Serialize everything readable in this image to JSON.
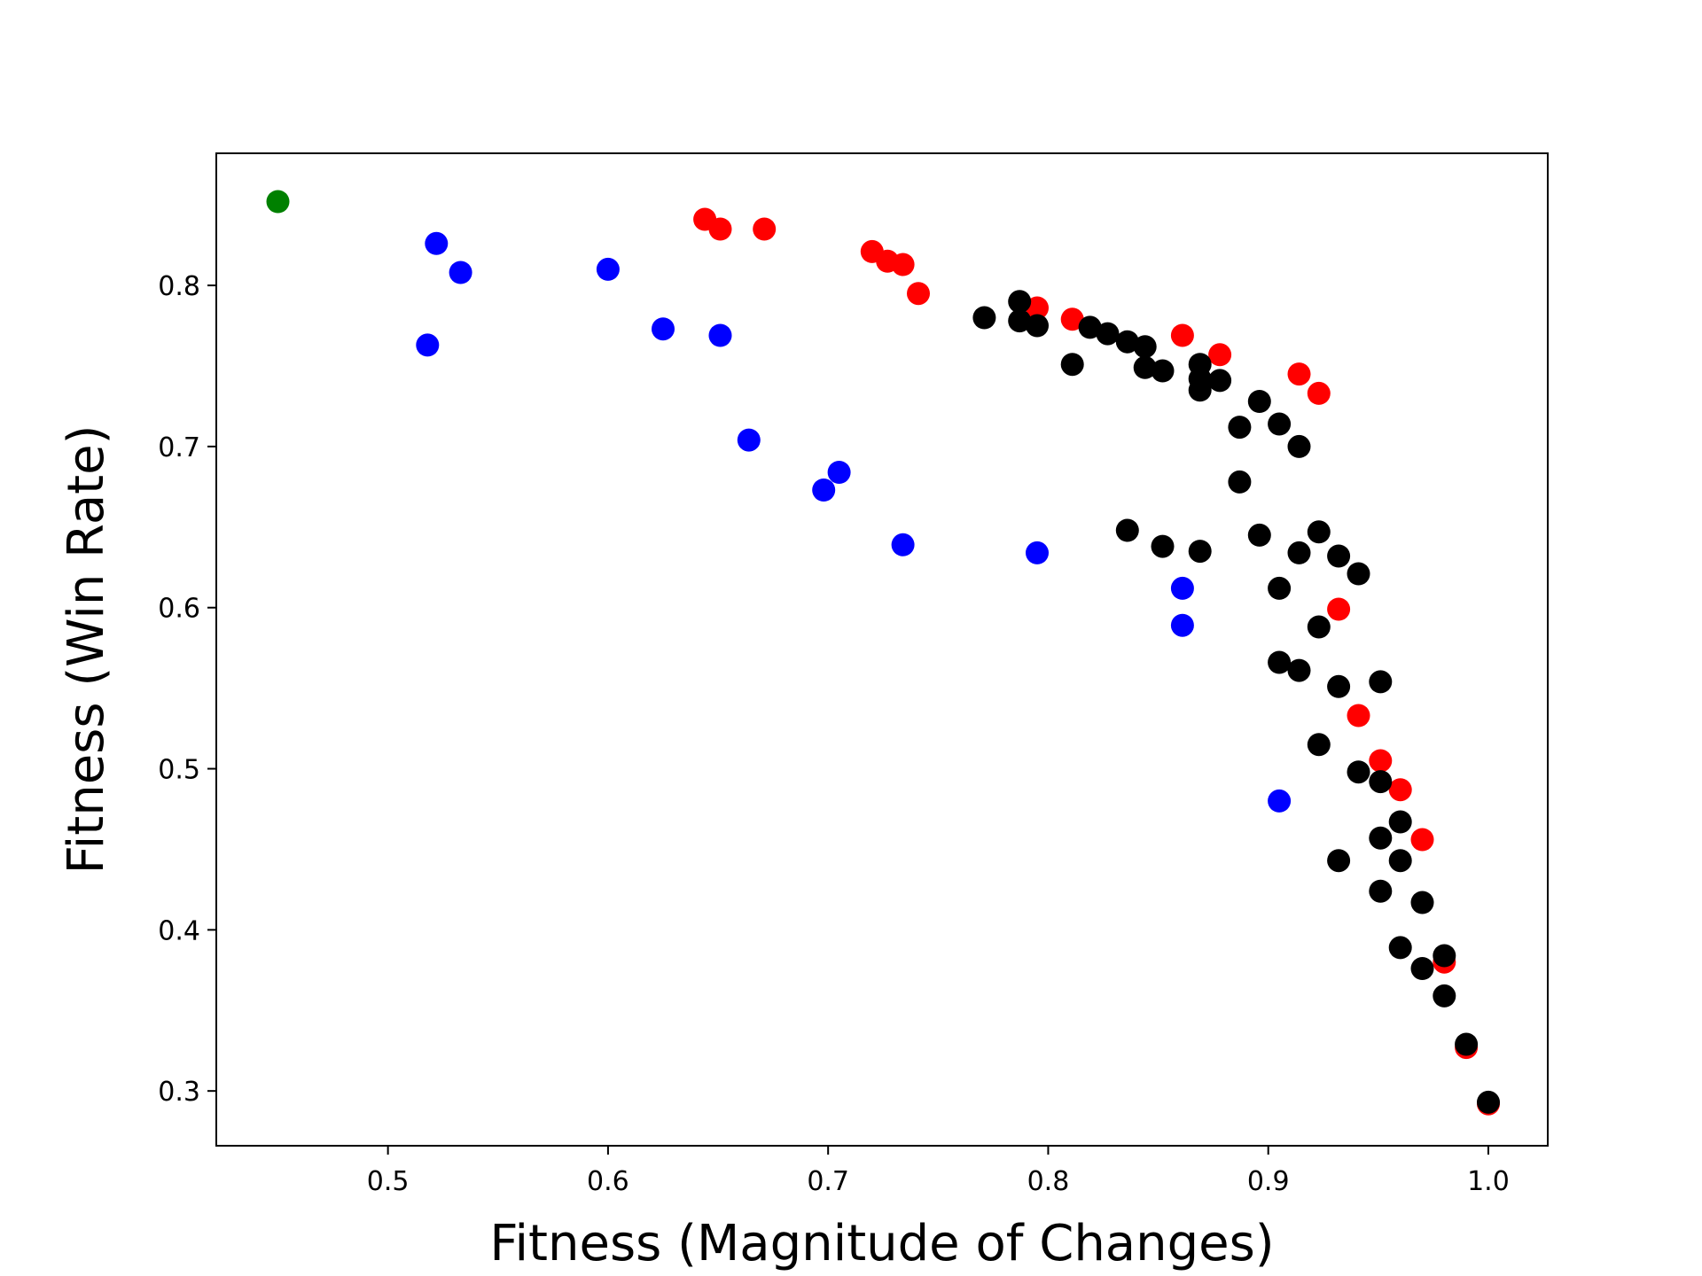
{
  "chart_data": {
    "type": "scatter",
    "title": "",
    "xlabel": "Fitness (Magnitude of Changes)",
    "ylabel": "Fitness (Win Rate)",
    "xlim": [
      0.422,
      1.027
    ],
    "ylim": [
      0.266,
      0.882
    ],
    "xticks": [
      0.5,
      0.6,
      0.7,
      0.8,
      0.9,
      1.0
    ],
    "xtick_labels": [
      "0.5",
      "0.6",
      "0.7",
      "0.8",
      "0.9",
      "1.0"
    ],
    "yticks": [
      0.3,
      0.4,
      0.5,
      0.6,
      0.7,
      0.8
    ],
    "ytick_labels": [
      "0.3",
      "0.4",
      "0.5",
      "0.6",
      "0.7",
      "0.8"
    ],
    "grid": false,
    "legend": "none",
    "series": [
      {
        "color": "#008000",
        "points": [
          [
            0.45,
            0.852
          ]
        ]
      },
      {
        "color": "#0000ff",
        "points": [
          [
            0.522,
            0.826
          ],
          [
            0.533,
            0.808
          ],
          [
            0.518,
            0.763
          ],
          [
            0.6,
            0.81
          ],
          [
            0.625,
            0.773
          ],
          [
            0.651,
            0.769
          ],
          [
            0.664,
            0.704
          ],
          [
            0.698,
            0.673
          ],
          [
            0.705,
            0.684
          ],
          [
            0.734,
            0.639
          ],
          [
            0.795,
            0.634
          ],
          [
            0.861,
            0.612
          ],
          [
            0.861,
            0.589
          ],
          [
            0.905,
            0.48
          ]
        ]
      },
      {
        "color": "#ff0000",
        "points": [
          [
            0.644,
            0.841
          ],
          [
            0.651,
            0.835
          ],
          [
            0.671,
            0.835
          ],
          [
            0.72,
            0.821
          ],
          [
            0.727,
            0.815
          ],
          [
            0.734,
            0.813
          ],
          [
            0.741,
            0.795
          ],
          [
            0.795,
            0.786
          ],
          [
            0.811,
            0.779
          ],
          [
            0.861,
            0.769
          ],
          [
            0.878,
            0.757
          ],
          [
            0.914,
            0.745
          ],
          [
            0.923,
            0.733
          ],
          [
            0.932,
            0.599
          ],
          [
            0.941,
            0.533
          ],
          [
            0.951,
            0.505
          ],
          [
            0.96,
            0.487
          ],
          [
            0.97,
            0.456
          ],
          [
            0.98,
            0.38
          ],
          [
            0.99,
            0.327
          ],
          [
            1.0,
            0.292
          ]
        ]
      },
      {
        "color": "#000000",
        "points": [
          [
            0.771,
            0.78
          ],
          [
            0.787,
            0.79
          ],
          [
            0.787,
            0.778
          ],
          [
            0.795,
            0.775
          ],
          [
            0.811,
            0.751
          ],
          [
            0.819,
            0.774
          ],
          [
            0.827,
            0.77
          ],
          [
            0.836,
            0.765
          ],
          [
            0.844,
            0.762
          ],
          [
            0.844,
            0.749
          ],
          [
            0.852,
            0.747
          ],
          [
            0.869,
            0.751
          ],
          [
            0.869,
            0.742
          ],
          [
            0.869,
            0.735
          ],
          [
            0.878,
            0.741
          ],
          [
            0.887,
            0.712
          ],
          [
            0.887,
            0.678
          ],
          [
            0.896,
            0.728
          ],
          [
            0.905,
            0.714
          ],
          [
            0.914,
            0.7
          ],
          [
            0.836,
            0.648
          ],
          [
            0.852,
            0.638
          ],
          [
            0.869,
            0.635
          ],
          [
            0.896,
            0.645
          ],
          [
            0.905,
            0.612
          ],
          [
            0.914,
            0.634
          ],
          [
            0.923,
            0.647
          ],
          [
            0.932,
            0.632
          ],
          [
            0.941,
            0.621
          ],
          [
            0.923,
            0.588
          ],
          [
            0.905,
            0.566
          ],
          [
            0.914,
            0.561
          ],
          [
            0.932,
            0.551
          ],
          [
            0.951,
            0.554
          ],
          [
            0.923,
            0.515
          ],
          [
            0.941,
            0.498
          ],
          [
            0.951,
            0.492
          ],
          [
            0.96,
            0.467
          ],
          [
            0.951,
            0.457
          ],
          [
            0.96,
            0.443
          ],
          [
            0.932,
            0.443
          ],
          [
            0.951,
            0.424
          ],
          [
            0.97,
            0.417
          ],
          [
            0.96,
            0.389
          ],
          [
            0.97,
            0.376
          ],
          [
            0.98,
            0.384
          ],
          [
            0.98,
            0.359
          ],
          [
            0.99,
            0.329
          ],
          [
            1.0,
            0.293
          ]
        ]
      }
    ]
  }
}
